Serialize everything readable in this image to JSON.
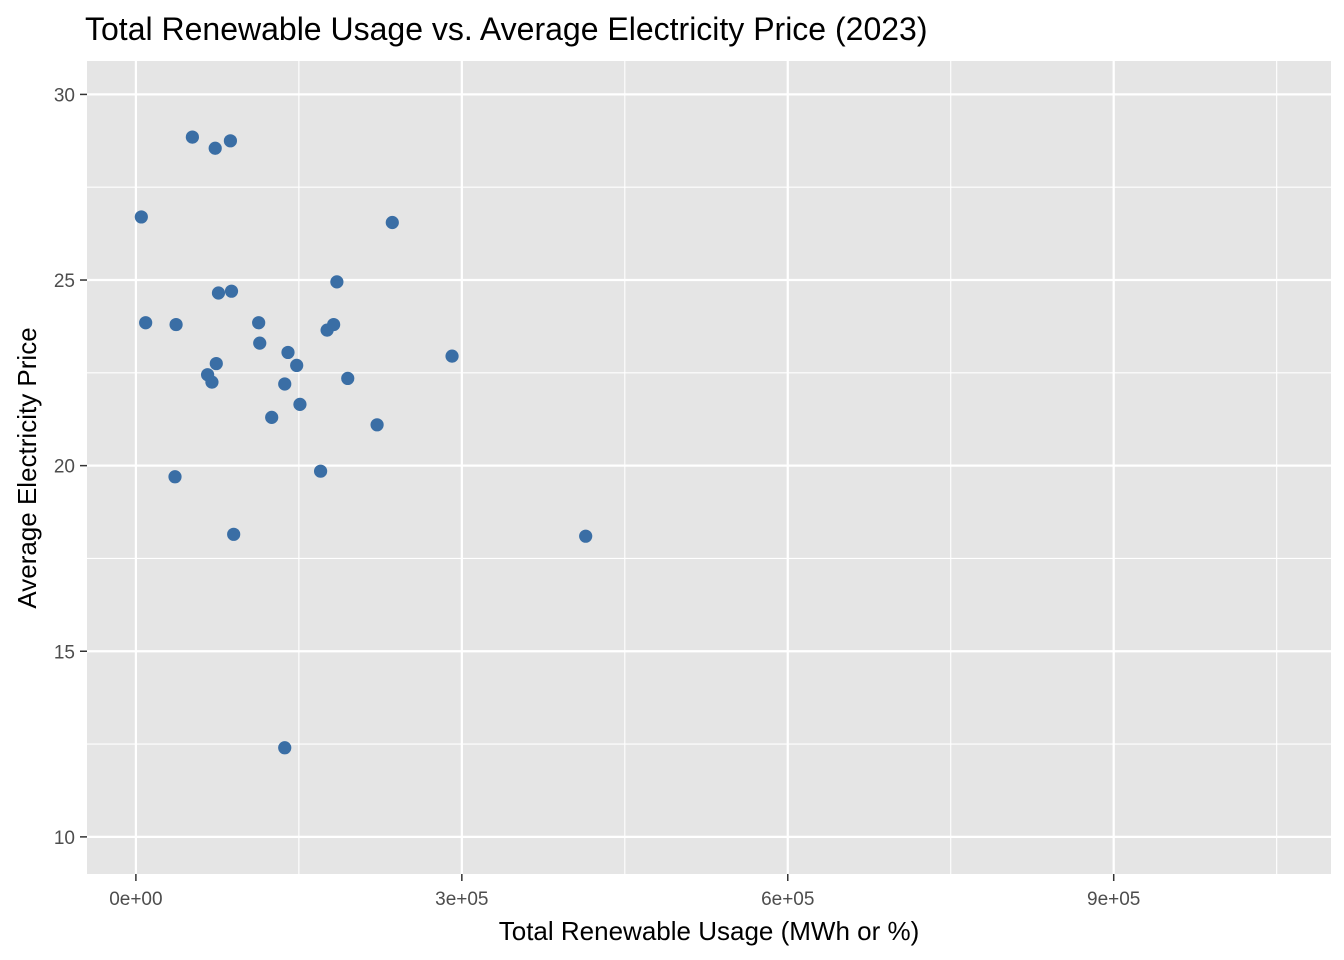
{
  "chart_data": {
    "type": "scatter",
    "title": "Total Renewable Usage vs. Average Electricity Price (2023)",
    "xlabel": "Total Renewable Usage (MWh or %)",
    "ylabel": "Average Electricity Price",
    "xlim": [
      -45000,
      1100000
    ],
    "ylim": [
      9,
      30.9
    ],
    "x_ticks": [
      {
        "value": 0,
        "label": "0e+00"
      },
      {
        "value": 300000,
        "label": "3e+05"
      },
      {
        "value": 600000,
        "label": "6e+05"
      },
      {
        "value": 900000,
        "label": "9e+05"
      }
    ],
    "x_minor": [
      150000,
      450000,
      750000,
      1050000
    ],
    "y_ticks": [
      {
        "value": 10,
        "label": "10"
      },
      {
        "value": 15,
        "label": "15"
      },
      {
        "value": 20,
        "label": "20"
      },
      {
        "value": 25,
        "label": "25"
      },
      {
        "value": 30,
        "label": "30"
      }
    ],
    "y_minor": [
      12.5,
      17.5,
      22.5,
      27.5
    ],
    "grid": true,
    "colors": {
      "panel": "#e5e5e5",
      "grid": "#ffffff",
      "point": "#3a6ea5",
      "tick": "#333333"
    },
    "x": [
      5000,
      52000,
      73000,
      87000,
      9000,
      37000,
      76000,
      88000,
      74000,
      66000,
      70000,
      36000,
      90000,
      113000,
      114000,
      140000,
      148000,
      137000,
      125000,
      151000,
      176000,
      182000,
      185000,
      195000,
      236000,
      222000,
      170000,
      291000,
      414000,
      137000
    ],
    "y": [
      26.7,
      28.85,
      28.55,
      28.75,
      23.85,
      23.8,
      24.65,
      24.7,
      22.75,
      22.45,
      22.25,
      19.7,
      18.15,
      23.85,
      23.3,
      23.05,
      22.7,
      22.2,
      21.3,
      21.65,
      23.65,
      23.8,
      24.95,
      22.35,
      26.55,
      21.1,
      19.85,
      22.95,
      18.1,
      12.4
    ]
  }
}
